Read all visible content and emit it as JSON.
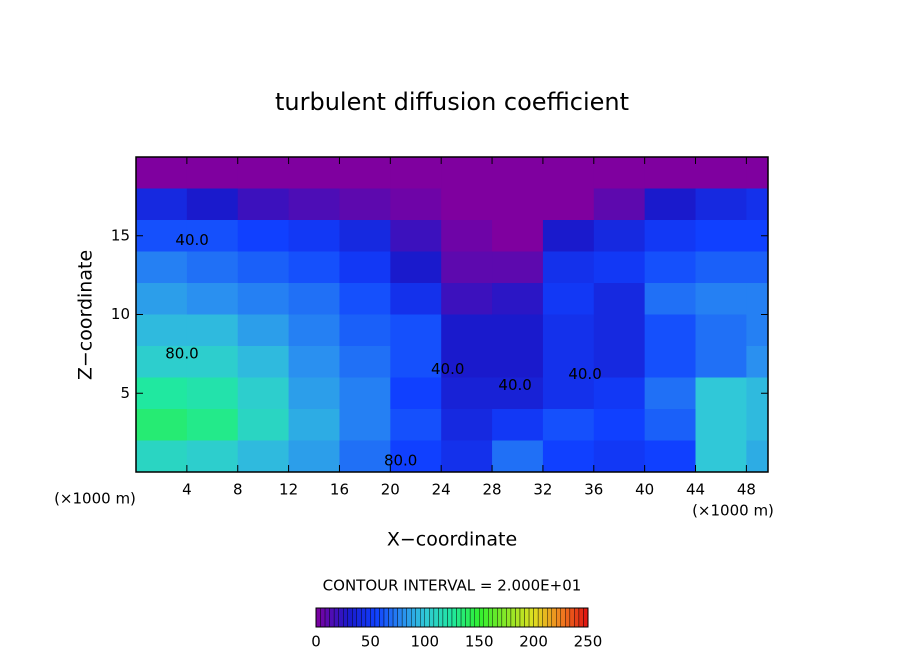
{
  "chart_data": {
    "type": "heatmap",
    "title": "turbulent diffusion coefficient",
    "x_label": "X−coordinate",
    "y_label": "Z−coordinate",
    "x_unit": "(×1000 m)",
    "x_unit_right": "(×1000 m)",
    "subtitle": "CONTOUR INTERVAL = 2.000E+01",
    "x": [
      2,
      6,
      10,
      14,
      18,
      22,
      26,
      30,
      34,
      38,
      42,
      46,
      50
    ],
    "y": [
      19,
      17,
      15,
      13,
      11,
      9,
      7,
      5,
      3,
      1
    ],
    "z": [
      [
        0,
        0,
        0,
        0,
        0,
        0,
        0,
        0,
        0,
        0,
        0,
        0,
        0
      ],
      [
        40,
        30,
        20,
        15,
        10,
        5,
        0,
        0,
        0,
        10,
        30,
        40,
        45
      ],
      [
        60,
        60,
        55,
        50,
        40,
        20,
        5,
        0,
        30,
        40,
        50,
        55,
        55
      ],
      [
        75,
        70,
        65,
        60,
        50,
        30,
        10,
        10,
        45,
        50,
        60,
        65,
        65
      ],
      [
        85,
        80,
        75,
        70,
        60,
        45,
        20,
        25,
        50,
        40,
        70,
        75,
        75
      ],
      [
        95,
        95,
        85,
        75,
        65,
        60,
        30,
        30,
        45,
        40,
        60,
        70,
        75
      ],
      [
        105,
        105,
        95,
        80,
        70,
        60,
        30,
        30,
        45,
        40,
        60,
        70,
        80
      ],
      [
        125,
        120,
        105,
        85,
        75,
        55,
        35,
        35,
        45,
        50,
        70,
        100,
        95
      ],
      [
        135,
        130,
        110,
        90,
        75,
        60,
        40,
        50,
        60,
        55,
        65,
        100,
        95
      ],
      [
        110,
        105,
        95,
        85,
        70,
        55,
        45,
        70,
        55,
        50,
        55,
        100,
        90
      ]
    ],
    "xlim": [
      0,
      49.7
    ],
    "ylim": [
      0,
      20
    ],
    "xticks": [
      4,
      8,
      12,
      16,
      20,
      24,
      28,
      32,
      36,
      40,
      44,
      48
    ],
    "yticks": [
      5,
      10,
      15
    ],
    "clim": [
      0,
      250
    ],
    "cticks": [
      0,
      50,
      100,
      150,
      200,
      250
    ],
    "colorscale": [
      [
        0,
        "#7f009f"
      ],
      [
        30,
        "#1a1acc"
      ],
      [
        55,
        "#1040ff"
      ],
      [
        80,
        "#2a90f0"
      ],
      [
        100,
        "#30c8d8"
      ],
      [
        125,
        "#20e8a0"
      ],
      [
        150,
        "#30f030"
      ],
      [
        200,
        "#e0e020"
      ],
      [
        225,
        "#f08020"
      ],
      [
        250,
        "#e01010"
      ]
    ],
    "annotations": [
      {
        "text": "40.0",
        "x": 3.1,
        "y": 14.7
      },
      {
        "text": "80.0",
        "x": 2.3,
        "y": 7.5
      },
      {
        "text": "80.0",
        "x": 19.5,
        "y": 0.7
      },
      {
        "text": "40.0",
        "x": 23.2,
        "y": 6.5
      },
      {
        "text": "40.0",
        "x": 28.5,
        "y": 5.5
      },
      {
        "text": "40.0",
        "x": 34.0,
        "y": 6.2
      }
    ]
  }
}
